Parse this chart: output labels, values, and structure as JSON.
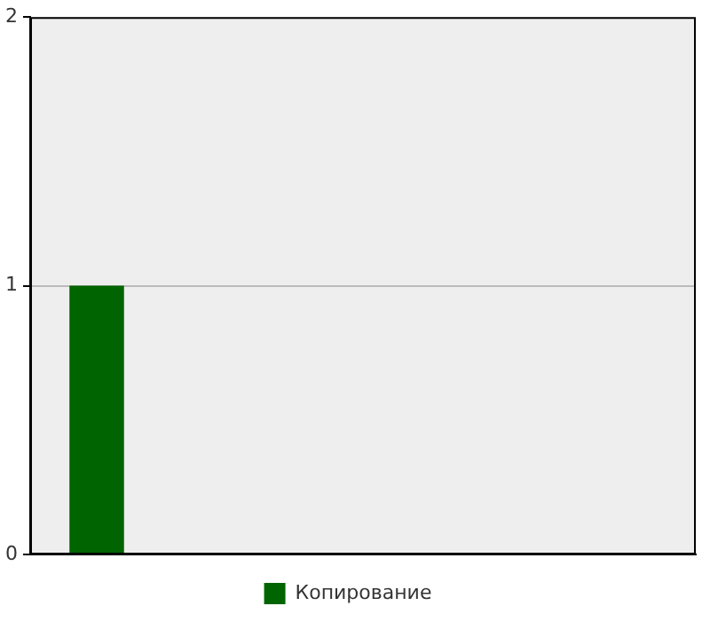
{
  "chart_data": {
    "type": "bar",
    "categories": [
      null,
      null,
      null,
      null,
      null
    ],
    "series": [
      {
        "name": "Копирование",
        "color": "#006400",
        "values": [
          1,
          null,
          null,
          null,
          null
        ]
      }
    ],
    "ylim": [
      0,
      2
    ],
    "yticks": [
      0,
      1,
      2
    ],
    "grid": "y",
    "legend": "bottom",
    "tick_labels": "y"
  }
}
